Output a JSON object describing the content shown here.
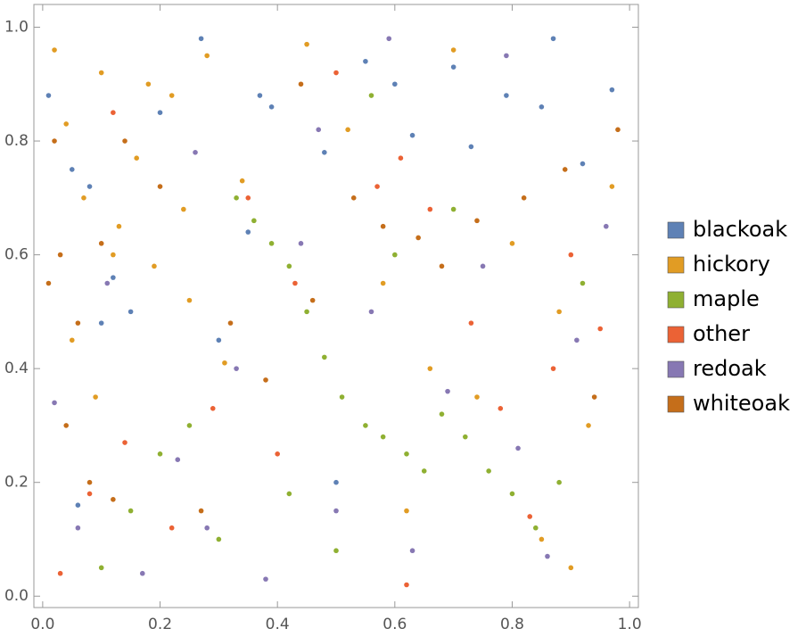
{
  "chart_data": {
    "type": "scatter",
    "xlim": [
      -0.015,
      1.015
    ],
    "ylim": [
      -0.02,
      1.04
    ],
    "xticks": [
      {
        "value": 0,
        "label": "0.0"
      },
      0.2,
      0.4,
      0.6,
      0.8,
      {
        "value": 1,
        "label": "1.0"
      }
    ],
    "yticks": [
      {
        "value": 0,
        "label": "0.0"
      },
      0.2,
      0.4,
      0.6,
      0.8,
      {
        "value": 1,
        "label": "1.0"
      }
    ],
    "legend": "right",
    "series": [
      {
        "name": "blackoak",
        "color": "#5e81b5",
        "x": [
          0.01,
          0.05,
          0.08,
          0.12,
          0.15,
          0.1,
          0.2,
          0.27,
          0.37,
          0.39,
          0.35,
          0.48,
          0.55,
          0.6,
          0.63,
          0.7,
          0.73,
          0.79,
          0.85,
          0.87,
          0.92,
          0.97,
          0.3,
          0.06,
          0.5
        ],
        "values": [
          0.88,
          0.75,
          0.72,
          0.56,
          0.5,
          0.48,
          0.85,
          0.98,
          0.88,
          0.86,
          0.64,
          0.78,
          0.94,
          0.9,
          0.81,
          0.93,
          0.79,
          0.88,
          0.86,
          0.98,
          0.76,
          0.89,
          0.45,
          0.16,
          0.2
        ]
      },
      {
        "name": "hickory",
        "color": "#e19c24",
        "x": [
          0.02,
          0.04,
          0.07,
          0.1,
          0.13,
          0.16,
          0.19,
          0.22,
          0.25,
          0.28,
          0.31,
          0.34,
          0.05,
          0.09,
          0.12,
          0.18,
          0.24,
          0.45,
          0.52,
          0.58,
          0.66,
          0.74,
          0.8,
          0.88,
          0.93,
          0.97,
          0.7,
          0.62,
          0.85,
          0.9
        ],
        "values": [
          0.96,
          0.83,
          0.7,
          0.92,
          0.65,
          0.77,
          0.58,
          0.88,
          0.52,
          0.95,
          0.41,
          0.73,
          0.45,
          0.35,
          0.6,
          0.9,
          0.68,
          0.97,
          0.82,
          0.55,
          0.4,
          0.35,
          0.62,
          0.5,
          0.3,
          0.72,
          0.96,
          0.15,
          0.1,
          0.05
        ]
      },
      {
        "name": "maple",
        "color": "#8fb032",
        "x": [
          0.33,
          0.36,
          0.39,
          0.42,
          0.45,
          0.48,
          0.51,
          0.55,
          0.58,
          0.62,
          0.65,
          0.68,
          0.72,
          0.76,
          0.8,
          0.84,
          0.88,
          0.25,
          0.2,
          0.15,
          0.3,
          0.5,
          0.6,
          0.7,
          0.42,
          0.56,
          0.92,
          0.1
        ],
        "values": [
          0.7,
          0.66,
          0.62,
          0.58,
          0.5,
          0.42,
          0.35,
          0.3,
          0.28,
          0.25,
          0.22,
          0.32,
          0.28,
          0.22,
          0.18,
          0.12,
          0.2,
          0.3,
          0.25,
          0.15,
          0.1,
          0.08,
          0.6,
          0.68,
          0.18,
          0.88,
          0.55,
          0.05
        ]
      },
      {
        "name": "other",
        "color": "#eb6235",
        "x": [
          0.03,
          0.08,
          0.14,
          0.22,
          0.29,
          0.35,
          0.43,
          0.5,
          0.57,
          0.61,
          0.66,
          0.73,
          0.78,
          0.83,
          0.9,
          0.95,
          0.12,
          0.4,
          0.62,
          0.87
        ],
        "values": [
          0.04,
          0.18,
          0.27,
          0.12,
          0.33,
          0.7,
          0.55,
          0.92,
          0.72,
          0.77,
          0.68,
          0.48,
          0.33,
          0.14,
          0.6,
          0.47,
          0.85,
          0.25,
          0.02,
          0.4
        ]
      },
      {
        "name": "redoak",
        "color": "#8778b3",
        "x": [
          0.02,
          0.06,
          0.11,
          0.17,
          0.23,
          0.28,
          0.33,
          0.38,
          0.44,
          0.5,
          0.56,
          0.63,
          0.69,
          0.75,
          0.81,
          0.86,
          0.91,
          0.96,
          0.47,
          0.26,
          0.59,
          0.79
        ],
        "values": [
          0.34,
          0.12,
          0.55,
          0.04,
          0.24,
          0.12,
          0.4,
          0.03,
          0.62,
          0.15,
          0.5,
          0.08,
          0.36,
          0.58,
          0.26,
          0.07,
          0.45,
          0.65,
          0.82,
          0.78,
          0.98,
          0.95
        ]
      },
      {
        "name": "whiteoak",
        "color": "#c56e1a",
        "x": [
          0.01,
          0.03,
          0.04,
          0.06,
          0.08,
          0.1,
          0.14,
          0.2,
          0.27,
          0.32,
          0.38,
          0.44,
          0.53,
          0.58,
          0.64,
          0.68,
          0.74,
          0.82,
          0.89,
          0.94,
          0.98,
          0.02,
          0.12,
          0.46
        ],
        "values": [
          0.55,
          0.6,
          0.3,
          0.48,
          0.2,
          0.62,
          0.8,
          0.72,
          0.15,
          0.48,
          0.38,
          0.9,
          0.7,
          0.65,
          0.63,
          0.58,
          0.66,
          0.7,
          0.75,
          0.35,
          0.82,
          0.8,
          0.17,
          0.52
        ]
      }
    ]
  }
}
